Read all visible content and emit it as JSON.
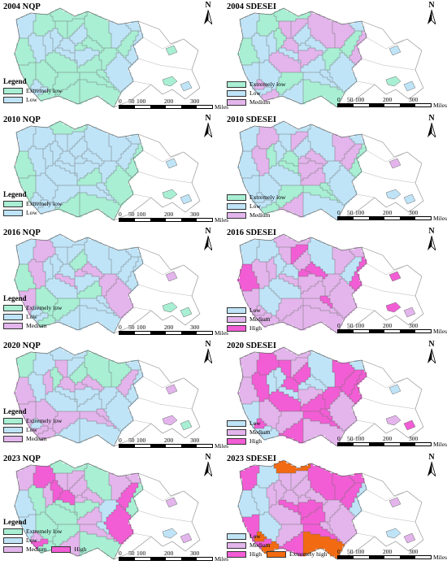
{
  "colors": {
    "extremely_low": "#a8efd4",
    "low": "#bfe4f7",
    "medium": "#e3b5ec",
    "high": "#f25dd5",
    "extremely_high": "#f26a12",
    "border": "#6b6b6b",
    "outline": "#888888"
  },
  "scale": {
    "labels": [
      "0",
      "50",
      "100",
      "200",
      "300"
    ],
    "units": "Miles"
  },
  "north_label": "N",
  "legend_title": "Legend",
  "panels": [
    {
      "title": "2004 NQP",
      "palette": [
        "extremely_low",
        "low"
      ],
      "legend": [
        {
          "label": "Extremely low",
          "color": "extremely_low"
        },
        {
          "label": "Low",
          "color": "low"
        }
      ]
    },
    {
      "title": "2004 SDESEI",
      "palette": [
        "low",
        "low",
        "extremely_low",
        "medium"
      ],
      "legend": [
        {
          "label": "Extremely low",
          "color": "extremely_low"
        },
        {
          "label": "Low",
          "color": "low"
        },
        {
          "label": "Medium",
          "color": "medium"
        }
      ]
    },
    {
      "title": "2010 NQP",
      "palette": [
        "low",
        "low",
        "extremely_low"
      ],
      "legend": [
        {
          "label": "Extremely low",
          "color": "extremely_low"
        },
        {
          "label": "Low",
          "color": "low"
        }
      ]
    },
    {
      "title": "2010 SDESEI",
      "palette": [
        "low",
        "low",
        "medium",
        "extremely_low"
      ],
      "legend": [
        {
          "label": "Extremely low",
          "color": "extremely_low"
        },
        {
          "label": "Low",
          "color": "low"
        },
        {
          "label": "Medium",
          "color": "medium"
        }
      ]
    },
    {
      "title": "2016 NQP",
      "palette": [
        "low",
        "extremely_low",
        "medium",
        "low"
      ],
      "legend": [
        {
          "label": "Extremely low",
          "color": "extremely_low"
        },
        {
          "label": "Low",
          "color": "low"
        },
        {
          "label": "Medium",
          "color": "medium"
        }
      ]
    },
    {
      "title": "2016 SDESEI",
      "palette": [
        "medium",
        "medium",
        "low",
        "high",
        "medium"
      ],
      "legend": [
        {
          "label": "Low",
          "color": "low"
        },
        {
          "label": "Medium",
          "color": "medium"
        },
        {
          "label": "High",
          "color": "high"
        }
      ]
    },
    {
      "title": "2020 NQP",
      "palette": [
        "low",
        "extremely_low",
        "medium",
        "low",
        "medium"
      ],
      "legend": [
        {
          "label": "Extremely low",
          "color": "extremely_low"
        },
        {
          "label": "Low",
          "color": "low"
        },
        {
          "label": "Medium",
          "color": "medium"
        }
      ]
    },
    {
      "title": "2020 SDESEI",
      "palette": [
        "medium",
        "high",
        "medium",
        "high",
        "low"
      ],
      "legend": [
        {
          "label": "Low",
          "color": "low"
        },
        {
          "label": "Medium",
          "color": "medium"
        },
        {
          "label": "High",
          "color": "high"
        }
      ]
    },
    {
      "title": "2023 NQP",
      "palette": [
        "medium",
        "low",
        "extremely_low",
        "high",
        "medium"
      ],
      "legend": [
        {
          "label": "Extremely low",
          "color": "extremely_low"
        },
        {
          "label": "Low",
          "color": "low"
        },
        {
          "label": "Medium",
          "color": "medium"
        },
        {
          "label": "High",
          "color": "high"
        }
      ]
    },
    {
      "title": "2023 SDESEI",
      "palette": [
        "medium",
        "high",
        "medium",
        "low",
        "high",
        "extremely_high"
      ],
      "legend": [
        {
          "label": "Low",
          "color": "low"
        },
        {
          "label": "Medium",
          "color": "medium"
        },
        {
          "label": "High",
          "color": "high"
        },
        {
          "label": "Extremely high",
          "color": "extremely_high"
        }
      ]
    }
  ]
}
